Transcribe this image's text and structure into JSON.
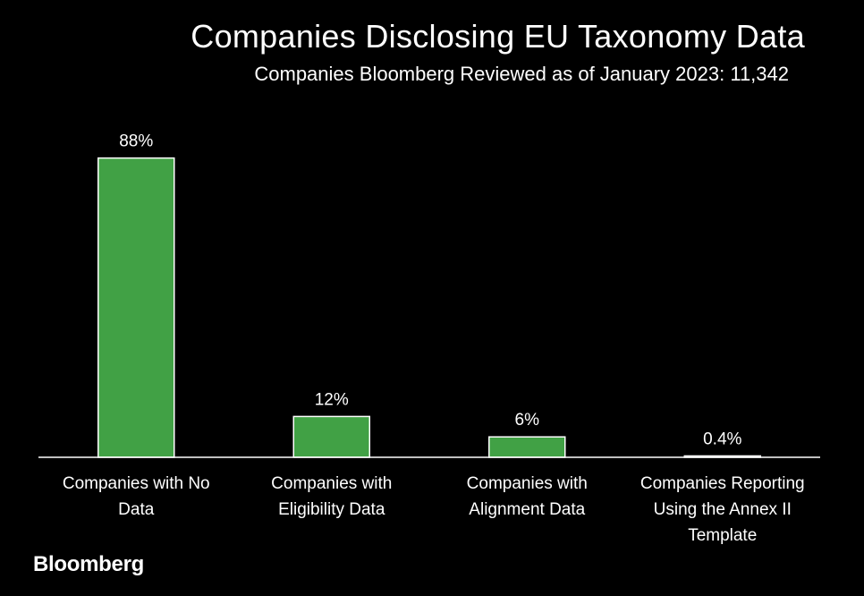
{
  "header": {
    "title": "Companies Disclosing EU Taxonomy Data",
    "subtitle": "Companies Bloomberg Reviewed as of January 2023: 11,342"
  },
  "chart_data": {
    "type": "bar",
    "title": "Companies Disclosing EU Taxonomy Data",
    "subtitle": "Companies Bloomberg Reviewed as of January 2023: 11,342",
    "xlabel": "",
    "ylabel": "",
    "ylim": [
      0,
      100
    ],
    "grid": false,
    "legend": "none",
    "categories": [
      [
        "Companies with No",
        "Data"
      ],
      [
        "Companies with",
        "Eligibility Data"
      ],
      [
        "Companies with",
        "Alignment Data"
      ],
      [
        "Companies Reporting",
        "Using the Annex II",
        "Template"
      ]
    ],
    "values": [
      88,
      12,
      6,
      0.4
    ],
    "value_labels": [
      "88%",
      "12%",
      "6%",
      "0.4%"
    ],
    "colors": {
      "bar": "#41a145",
      "bar_outline": "#ffffff",
      "background": "#000000",
      "text": "#ffffff",
      "axis": "#ffffff"
    }
  },
  "footer": {
    "logo": "Bloomberg"
  }
}
